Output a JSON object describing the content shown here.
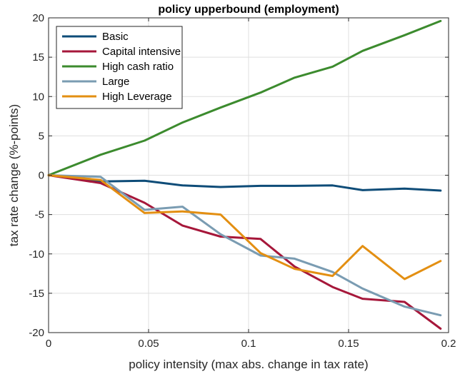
{
  "chart_data": {
    "type": "line",
    "title": "policy upperbound (employment)",
    "xlabel": "policy intensity (max abs. change in tax rate)",
    "ylabel": "tax rate change (%-points)",
    "xlim": [
      0,
      0.2
    ],
    "ylim": [
      -20,
      20
    ],
    "xticks": [
      0,
      0.05,
      0.1,
      0.15,
      0.2
    ],
    "xtick_labels": [
      "0",
      "0.05",
      "0.1",
      "0.15",
      "0.2"
    ],
    "yticks": [
      -20,
      -15,
      -10,
      -5,
      0,
      5,
      10,
      15,
      20
    ],
    "ytick_labels": [
      "-20",
      "-15",
      "-10",
      "-5",
      "0",
      "5",
      "10",
      "15",
      "20"
    ],
    "grid": true,
    "legend_position": "top-left",
    "series": [
      {
        "name": "Basic",
        "color": "#0E4C78",
        "x": [
          0,
          0.026,
          0.048,
          0.067,
          0.086,
          0.106,
          0.123,
          0.142,
          0.157,
          0.178,
          0.196
        ],
        "y": [
          0,
          -0.8,
          -0.7,
          -1.3,
          -1.5,
          -1.35,
          -1.35,
          -1.3,
          -1.9,
          -1.7,
          -1.95
        ]
      },
      {
        "name": "Capital intensive",
        "color": "#A6173A",
        "x": [
          0,
          0.026,
          0.048,
          0.067,
          0.086,
          0.106,
          0.123,
          0.142,
          0.157,
          0.178,
          0.196
        ],
        "y": [
          0,
          -1.0,
          -3.5,
          -6.4,
          -7.8,
          -8.1,
          -11.6,
          -14.2,
          -15.7,
          -16.1,
          -19.5
        ]
      },
      {
        "name": "High cash ratio",
        "color": "#3C8B2E",
        "x": [
          0,
          0.026,
          0.048,
          0.067,
          0.086,
          0.106,
          0.123,
          0.142,
          0.157,
          0.178,
          0.196
        ],
        "y": [
          0,
          2.6,
          4.4,
          6.7,
          8.6,
          10.5,
          12.4,
          13.8,
          15.8,
          17.8,
          19.6
        ]
      },
      {
        "name": "Large",
        "color": "#7A9CB2",
        "x": [
          0,
          0.026,
          0.048,
          0.067,
          0.086,
          0.106,
          0.123,
          0.142,
          0.157,
          0.178,
          0.196
        ],
        "y": [
          0,
          -0.2,
          -4.4,
          -4.0,
          -7.5,
          -10.2,
          -10.6,
          -12.3,
          -14.4,
          -16.7,
          -17.8
        ]
      },
      {
        "name": "High Leverage",
        "color": "#E38F12",
        "x": [
          0,
          0.026,
          0.048,
          0.067,
          0.086,
          0.106,
          0.123,
          0.142,
          0.157,
          0.178,
          0.196
        ],
        "y": [
          0,
          -0.6,
          -4.8,
          -4.6,
          -5.0,
          -9.9,
          -11.9,
          -12.8,
          -9.0,
          -13.2,
          -10.9
        ]
      }
    ]
  }
}
